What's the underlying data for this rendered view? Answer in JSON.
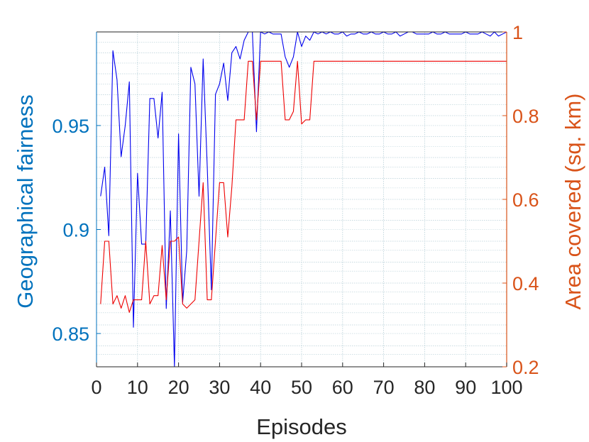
{
  "chart_data": {
    "type": "line",
    "xlabel": "Episodes",
    "ylabel_left": "Geographical fairness",
    "ylabel_right": "Area covered (sq. km)",
    "xlim": [
      0,
      100
    ],
    "ylim_left": [
      0.834,
      0.995
    ],
    "ylim_right": [
      0.2,
      1.0
    ],
    "xticks": [
      "0",
      "10",
      "20",
      "30",
      "40",
      "50",
      "60",
      "70",
      "80",
      "90",
      "100"
    ],
    "yticks_left": [
      "0.85",
      "0.9",
      "0.95"
    ],
    "yticks_right": [
      "0.2",
      "0.4",
      "0.6",
      "0.8",
      "1"
    ],
    "grid": true,
    "colors": {
      "left_axis": "#0072BD",
      "right_axis": "#D95319",
      "series_fairness": "#0000EE",
      "series_area": "#EE0000",
      "grid": "#B8D0D8"
    },
    "series": [
      {
        "axis": "left",
        "color": "#0000EE",
        "x": [
          1,
          2,
          3,
          4,
          5,
          6,
          7,
          8,
          9,
          10,
          11,
          12,
          13,
          14,
          15,
          16,
          17,
          18,
          19,
          20,
          21,
          22,
          23,
          24,
          25,
          26,
          27,
          28,
          29,
          30,
          31,
          32,
          33,
          34,
          35,
          36,
          37,
          38,
          39,
          40,
          41,
          42,
          43,
          44,
          45,
          46,
          47,
          48,
          49,
          50,
          51,
          52,
          53,
          54,
          55,
          56,
          57,
          58,
          59,
          60,
          61,
          62,
          63,
          64,
          65,
          66,
          67,
          68,
          69,
          70,
          71,
          72,
          73,
          74,
          75,
          76,
          77,
          78,
          79,
          80,
          81,
          82,
          83,
          84,
          85,
          86,
          87,
          88,
          89,
          90,
          91,
          92,
          93,
          94,
          95,
          96,
          97,
          98,
          99,
          100
        ],
        "values": [
          0.916,
          0.93,
          0.897,
          0.986,
          0.972,
          0.935,
          0.95,
          0.971,
          0.853,
          0.927,
          0.893,
          0.893,
          0.963,
          0.963,
          0.944,
          0.966,
          0.862,
          0.909,
          0.834,
          0.946,
          0.865,
          0.89,
          0.978,
          0.97,
          0.916,
          0.982,
          0.93,
          0.871,
          0.965,
          0.97,
          0.98,
          0.962,
          0.985,
          0.988,
          0.982,
          0.991,
          0.995,
          0.995,
          0.947,
          0.995,
          0.994,
          0.995,
          0.994,
          0.994,
          0.994,
          0.983,
          0.978,
          0.983,
          0.995,
          0.988,
          0.993,
          0.991,
          0.995,
          0.994,
          0.995,
          0.994,
          0.995,
          0.994,
          0.994,
          0.995,
          0.993,
          0.994,
          0.994,
          0.995,
          0.994,
          0.994,
          0.995,
          0.994,
          0.994,
          0.995,
          0.994,
          0.994,
          0.995,
          0.993,
          0.994,
          0.995,
          0.995,
          0.994,
          0.994,
          0.994,
          0.994,
          0.995,
          0.994,
          0.994,
          0.995,
          0.994,
          0.994,
          0.994,
          0.994,
          0.995,
          0.994,
          0.994,
          0.994,
          0.995,
          0.994,
          0.993,
          0.995,
          0.993,
          0.994,
          0.995
        ]
      },
      {
        "axis": "right",
        "color": "#EE0000",
        "x": [
          1,
          2,
          3,
          4,
          5,
          6,
          7,
          8,
          9,
          10,
          11,
          12,
          13,
          14,
          15,
          16,
          17,
          18,
          19,
          20,
          21,
          22,
          23,
          24,
          25,
          26,
          27,
          28,
          29,
          30,
          31,
          32,
          33,
          34,
          35,
          36,
          37,
          38,
          39,
          40,
          41,
          42,
          43,
          44,
          45,
          46,
          47,
          48,
          49,
          50,
          51,
          52,
          53,
          54,
          55,
          56,
          57,
          58,
          59,
          60,
          61,
          62,
          63,
          64,
          65,
          66,
          67,
          68,
          69,
          70,
          71,
          72,
          73,
          74,
          75,
          76,
          77,
          78,
          79,
          80,
          81,
          82,
          83,
          84,
          85,
          86,
          87,
          88,
          89,
          90,
          91,
          92,
          93,
          94,
          95,
          96,
          97,
          98,
          99,
          100
        ],
        "values": [
          0.35,
          0.5,
          0.5,
          0.35,
          0.37,
          0.34,
          0.37,
          0.33,
          0.36,
          0.36,
          0.36,
          0.5,
          0.35,
          0.37,
          0.37,
          0.49,
          0.36,
          0.5,
          0.5,
          0.51,
          0.35,
          0.34,
          0.35,
          0.36,
          0.5,
          0.64,
          0.36,
          0.36,
          0.5,
          0.64,
          0.64,
          0.51,
          0.63,
          0.79,
          0.79,
          0.79,
          0.93,
          0.93,
          0.79,
          0.93,
          0.93,
          0.93,
          0.93,
          0.93,
          0.93,
          0.79,
          0.79,
          0.81,
          0.93,
          0.78,
          0.79,
          0.79,
          0.93,
          0.93,
          0.93,
          0.93,
          0.93,
          0.93,
          0.93,
          0.93,
          0.93,
          0.93,
          0.93,
          0.93,
          0.93,
          0.93,
          0.93,
          0.93,
          0.93,
          0.93,
          0.93,
          0.93,
          0.93,
          0.93,
          0.93,
          0.93,
          0.93,
          0.93,
          0.93,
          0.93,
          0.93,
          0.93,
          0.93,
          0.93,
          0.93,
          0.93,
          0.93,
          0.93,
          0.93,
          0.93,
          0.93,
          0.93,
          0.93,
          0.93,
          0.93,
          0.93,
          0.93,
          0.93,
          0.93,
          0.93
        ]
      }
    ]
  }
}
